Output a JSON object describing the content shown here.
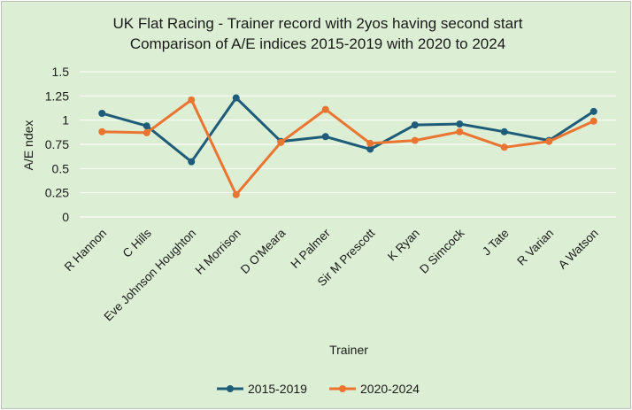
{
  "chart_data": {
    "type": "line",
    "title": [
      "UK Flat Racing - Trainer record with 2yos having second start",
      "Comparison of A/E indices 2015-2019 with 2020 to 2024"
    ],
    "xlabel": "Trainer",
    "ylabel": "A/E ndex",
    "ylim": [
      0,
      1.5
    ],
    "yticks": [
      "0",
      "0.25",
      "0.5",
      "0.75",
      "1",
      "1.25",
      "1.5"
    ],
    "grid": true,
    "legend_position": "bottom",
    "categories": [
      "R Hannon",
      "C Hills",
      "Eve Johnson Houghton",
      "H Morrison",
      "D O'Meara",
      "H Palmer",
      "Sir M Prescott",
      "K Ryan",
      "D Simcock",
      "J Tate",
      "R Varian",
      "A Watson"
    ],
    "series": [
      {
        "name": "2015-2019",
        "color": "#1f5c7a",
        "values": [
          1.07,
          0.94,
          0.57,
          1.23,
          0.78,
          0.83,
          0.7,
          0.95,
          0.96,
          0.88,
          0.79,
          1.09
        ]
      },
      {
        "name": "2020-2024",
        "color": "#ea7530",
        "values": [
          0.88,
          0.87,
          1.21,
          0.23,
          0.77,
          1.11,
          0.76,
          0.79,
          0.88,
          0.72,
          0.78,
          0.99
        ]
      }
    ]
  }
}
